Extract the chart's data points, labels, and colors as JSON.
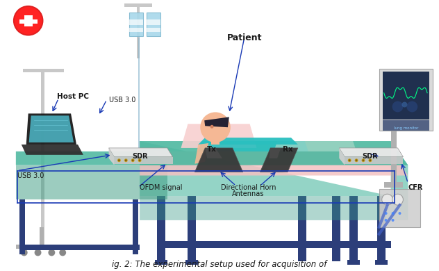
{
  "title": "",
  "caption": "ig. 2: The experimental setup used for acquisition of",
  "background_color": "#ffffff",
  "labels": {
    "patient": "Patient",
    "host_pc": "Host PC",
    "usb_top": "USB 3.0",
    "usb_bottom": "USB 3.0",
    "sdr_left": "SDR",
    "sdr_right": "SDR",
    "tx": "Tx",
    "rx": "Rx",
    "ofdm": "OFDM signal",
    "dir_horn": "Directional Horn",
    "antennas": "Antennas",
    "cfr": "CFR"
  },
  "colors": {
    "table_top": "#4db8a0",
    "table_legs": "#2c3e7a",
    "bed_surface": "#f4c2c2",
    "bed_pillow": "#f4c2c2",
    "patient_skin": "#f5b895",
    "patient_hair": "#1a1a2e",
    "patient_shirt": "#2abfbf",
    "arrow_blue": "#1a3ab5",
    "cross_red": "#e02020",
    "cross_bg": "#ffffff",
    "iv_bag": "#a8d8ea",
    "laptop_screen": "#4db8c8",
    "laptop_body": "#2c2c2c",
    "monitor_screen": "#1a2a4a",
    "text_dark": "#1a1a1a",
    "sdr_body": "#e8e8e8",
    "sdr_accent": "#c8a020",
    "horn_dark": "#2c2c2c",
    "stand_gray": "#b0b0b0",
    "connector_blue": "#4060c8"
  },
  "figsize": [
    6.32,
    3.9
  ],
  "dpi": 100
}
